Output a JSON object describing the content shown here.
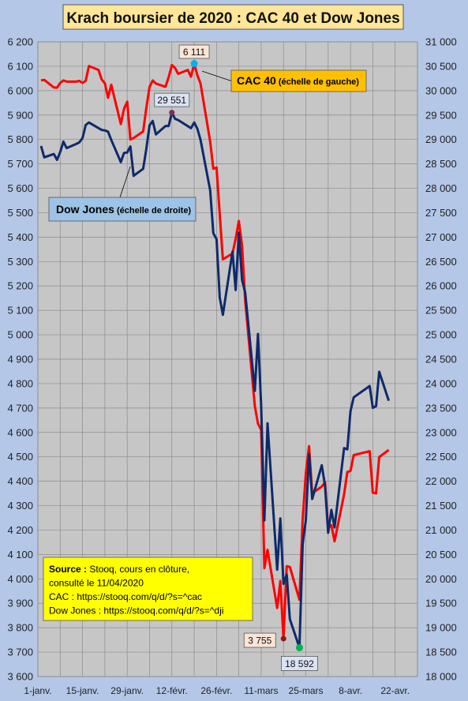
{
  "chart_data": {
    "type": "line",
    "title": "Krach boursier de 2020 : CAC 40 et Dow Jones",
    "x_ticks": [
      "1-janv.",
      "15-janv.",
      "29-janv.",
      "12-févr.",
      "26-févr.",
      "11-mars",
      "25-mars",
      "8-avr.",
      "22-avr."
    ],
    "x_range": [
      "2020-01-01",
      "2020-04-29"
    ],
    "y_left": {
      "range": [
        3600,
        6200
      ],
      "ticks": [
        "3 600",
        "3 700",
        "3 800",
        "3 900",
        "4 000",
        "4 100",
        "4 200",
        "4 300",
        "4 400",
        "4 500",
        "4 600",
        "4 700",
        "4 800",
        "4 900",
        "5 000",
        "5 100",
        "5 200",
        "5 300",
        "5 400",
        "5 500",
        "5 600",
        "5 700",
        "5 800",
        "5 900",
        "6 000",
        "6 100",
        "6 200"
      ]
    },
    "y_right": {
      "range": [
        18000,
        31000
      ],
      "ticks": [
        "18 000",
        "18 500",
        "19 000",
        "19 500",
        "20 000",
        "20 500",
        "21 000",
        "21 500",
        "22 000",
        "22 500",
        "23 000",
        "23 500",
        "24 000",
        "24 500",
        "25 000",
        "25 500",
        "26 000",
        "26 500",
        "27 000",
        "27 500",
        "28 000",
        "28 500",
        "29 000",
        "29 500",
        "30 000",
        "30 500",
        "31 000"
      ]
    },
    "grid": true,
    "series": [
      {
        "name": "CAC 40",
        "axis": "left",
        "color": "#ff0000",
        "label": "CAC 40",
        "label_suffix": "(échelle de gauche)",
        "points": [
          [
            "2020-01-02",
            6042
          ],
          [
            "2020-01-03",
            6044
          ],
          [
            "2020-01-06",
            6013
          ],
          [
            "2020-01-07",
            6012
          ],
          [
            "2020-01-08",
            6032
          ],
          [
            "2020-01-09",
            6042
          ],
          [
            "2020-01-10",
            6037
          ],
          [
            "2020-01-13",
            6037
          ],
          [
            "2020-01-14",
            6040
          ],
          [
            "2020-01-15",
            6032
          ],
          [
            "2020-01-16",
            6040
          ],
          [
            "2020-01-17",
            6101
          ],
          [
            "2020-01-20",
            6085
          ],
          [
            "2020-01-21",
            6046
          ],
          [
            "2020-01-22",
            6030
          ],
          [
            "2020-01-23",
            5971
          ],
          [
            "2020-01-24",
            6024
          ],
          [
            "2020-01-27",
            5863
          ],
          [
            "2020-01-28",
            5925
          ],
          [
            "2020-01-29",
            5955
          ],
          [
            "2020-01-30",
            5800
          ],
          [
            "2020-01-31",
            5806
          ],
          [
            "2020-02-03",
            5833
          ],
          [
            "2020-02-04",
            5929
          ],
          [
            "2020-02-05",
            6015
          ],
          [
            "2020-02-06",
            6042
          ],
          [
            "2020-02-07",
            6029
          ],
          [
            "2020-02-10",
            6016
          ],
          [
            "2020-02-11",
            6055
          ],
          [
            "2020-02-12",
            6105
          ],
          [
            "2020-02-13",
            6093
          ],
          [
            "2020-02-14",
            6069
          ],
          [
            "2020-02-17",
            6085
          ],
          [
            "2020-02-18",
            6057
          ],
          [
            "2020-02-19",
            6111
          ],
          [
            "2020-02-20",
            6063
          ],
          [
            "2020-02-21",
            6029
          ],
          [
            "2020-02-24",
            5792
          ],
          [
            "2020-02-25",
            5680
          ],
          [
            "2020-02-26",
            5685
          ],
          [
            "2020-02-27",
            5495
          ],
          [
            "2020-02-28",
            5309
          ],
          [
            "2020-03-02",
            5333
          ],
          [
            "2020-03-03",
            5393
          ],
          [
            "2020-03-04",
            5466
          ],
          [
            "2020-03-05",
            5367
          ],
          [
            "2020-03-06",
            5139
          ],
          [
            "2020-03-09",
            4708
          ],
          [
            "2020-03-10",
            4636
          ],
          [
            "2020-03-11",
            4610
          ],
          [
            "2020-03-12",
            4044
          ],
          [
            "2020-03-13",
            4119
          ],
          [
            "2020-03-16",
            3881
          ],
          [
            "2020-03-17",
            3991
          ],
          [
            "2020-03-18",
            3755
          ],
          [
            "2020-03-19",
            4052
          ],
          [
            "2020-03-20",
            4049
          ],
          [
            "2020-03-23",
            3915
          ],
          [
            "2020-03-24",
            4243
          ],
          [
            "2020-03-25",
            4432
          ],
          [
            "2020-03-26",
            4544
          ],
          [
            "2020-03-27",
            4351
          ],
          [
            "2020-03-30",
            4378
          ],
          [
            "2020-03-31",
            4396
          ],
          [
            "2020-04-01",
            4208
          ],
          [
            "2020-04-02",
            4220
          ],
          [
            "2020-04-03",
            4154
          ],
          [
            "2020-04-06",
            4346
          ],
          [
            "2020-04-07",
            4438
          ],
          [
            "2020-04-08",
            4442
          ],
          [
            "2020-04-09",
            4507
          ],
          [
            "2020-04-14",
            4523
          ],
          [
            "2020-04-15",
            4353
          ],
          [
            "2020-04-16",
            4350
          ],
          [
            "2020-04-17",
            4499
          ],
          [
            "2020-04-20",
            4528
          ]
        ]
      },
      {
        "name": "Dow Jones",
        "axis": "right",
        "color": "#0e2a6b",
        "label": "Dow Jones",
        "label_suffix": "(échelle de droite)",
        "points": [
          [
            "2020-01-02",
            28868
          ],
          [
            "2020-01-03",
            28634
          ],
          [
            "2020-01-06",
            28703
          ],
          [
            "2020-01-07",
            28583
          ],
          [
            "2020-01-08",
            28745
          ],
          [
            "2020-01-09",
            28957
          ],
          [
            "2020-01-10",
            28824
          ],
          [
            "2020-01-13",
            28907
          ],
          [
            "2020-01-14",
            28940
          ],
          [
            "2020-01-15",
            29030
          ],
          [
            "2020-01-16",
            29297
          ],
          [
            "2020-01-17",
            29348
          ],
          [
            "2020-01-21",
            29196
          ],
          [
            "2020-01-22",
            29186
          ],
          [
            "2020-01-23",
            29160
          ],
          [
            "2020-01-24",
            28990
          ],
          [
            "2020-01-27",
            28536
          ],
          [
            "2020-01-28",
            28723
          ],
          [
            "2020-01-29",
            28734
          ],
          [
            "2020-01-30",
            28860
          ],
          [
            "2020-01-31",
            28256
          ],
          [
            "2020-02-03",
            28400
          ],
          [
            "2020-02-04",
            28808
          ],
          [
            "2020-02-05",
            29291
          ],
          [
            "2020-02-06",
            29380
          ],
          [
            "2020-02-07",
            29103
          ],
          [
            "2020-02-10",
            29276
          ],
          [
            "2020-02-11",
            29276
          ],
          [
            "2020-02-12",
            29551
          ],
          [
            "2020-02-13",
            29424
          ],
          [
            "2020-02-14",
            29398
          ],
          [
            "2020-02-18",
            29232
          ],
          [
            "2020-02-19",
            29348
          ],
          [
            "2020-02-20",
            29220
          ],
          [
            "2020-02-21",
            28992
          ],
          [
            "2020-02-24",
            27961
          ],
          [
            "2020-02-25",
            27081
          ],
          [
            "2020-02-26",
            26957
          ],
          [
            "2020-02-27",
            25767
          ],
          [
            "2020-02-28",
            25409
          ],
          [
            "2020-03-02",
            26703
          ],
          [
            "2020-03-03",
            25917
          ],
          [
            "2020-03-04",
            27091
          ],
          [
            "2020-03-05",
            26121
          ],
          [
            "2020-03-06",
            25865
          ],
          [
            "2020-03-09",
            23851
          ],
          [
            "2020-03-10",
            25018
          ],
          [
            "2020-03-11",
            23553
          ],
          [
            "2020-03-12",
            21200
          ],
          [
            "2020-03-13",
            23186
          ],
          [
            "2020-03-16",
            20189
          ],
          [
            "2020-03-17",
            21237
          ],
          [
            "2020-03-18",
            19899
          ],
          [
            "2020-03-19",
            20087
          ],
          [
            "2020-03-20",
            19174
          ],
          [
            "2020-03-23",
            18592
          ],
          [
            "2020-03-24",
            20705
          ],
          [
            "2020-03-25",
            21201
          ],
          [
            "2020-03-26",
            22552
          ],
          [
            "2020-03-27",
            21637
          ],
          [
            "2020-03-30",
            22327
          ],
          [
            "2020-03-31",
            21917
          ],
          [
            "2020-04-01",
            20944
          ],
          [
            "2020-04-02",
            21413
          ],
          [
            "2020-04-03",
            21053
          ],
          [
            "2020-04-06",
            22680
          ],
          [
            "2020-04-07",
            22654
          ],
          [
            "2020-04-08",
            23434
          ],
          [
            "2020-04-09",
            23719
          ],
          [
            "2020-04-14",
            23950
          ],
          [
            "2020-04-15",
            23504
          ],
          [
            "2020-04-16",
            23538
          ],
          [
            "2020-04-17",
            24242
          ],
          [
            "2020-04-20",
            23650
          ]
        ]
      }
    ],
    "annotations": {
      "cac_max": {
        "date": "2020-02-19",
        "value": 6111,
        "label": "6 111"
      },
      "cac_min": {
        "date": "2020-03-18",
        "value": 3755,
        "label": "3 755"
      },
      "dj_max": {
        "date": "2020-02-12",
        "value": 29551,
        "label": "29 551"
      },
      "dj_min": {
        "date": "2020-03-23",
        "value": 18592,
        "label": "18 592"
      }
    },
    "source_box": {
      "bold": "Source :",
      "lines": [
        "Stooq, cours en clôture,",
        "consulté le 11/04/2020",
        "CAC : https://stooq.com/q/d/?s=^cac",
        "Dow Jones : https://stooq.com/q/d/?s=^dji"
      ]
    }
  },
  "colors": {
    "background": "#b4c7e7",
    "plot": "#c6c6c6",
    "title_box": "#ffe699",
    "cac_label_box": "#ffc000",
    "dj_label_box": "#9dc3e6",
    "source_box": "#ffff00",
    "max_marker_cac": "#00b0f0",
    "min_marker_dj": "#00b050",
    "min_marker_cac": "#8b1a1a",
    "max_marker_dj": "#7b2d5a"
  }
}
